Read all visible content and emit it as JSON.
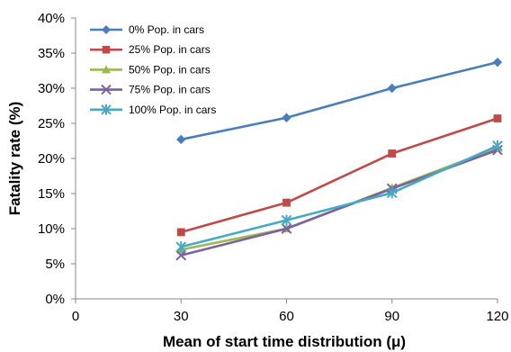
{
  "chart_data": {
    "type": "line",
    "title": "",
    "xlabel": "Mean of start time distribution (μ)",
    "ylabel": "Fatality rate (%)",
    "xlim": [
      0,
      120
    ],
    "ylim": [
      0,
      40
    ],
    "x_ticks": [
      "0",
      "30",
      "60",
      "90",
      "120"
    ],
    "y_ticks": [
      "0%",
      "5%",
      "10%",
      "15%",
      "20%",
      "25%",
      "30%",
      "35%",
      "40%"
    ],
    "grid": false,
    "legend_position": "top-left",
    "x": [
      30,
      60,
      90,
      120
    ],
    "series": [
      {
        "name": "0% Pop. in cars",
        "color": "#4a7ebb",
        "marker": "diamond",
        "values": [
          22.7,
          25.8,
          30.0,
          33.7
        ]
      },
      {
        "name": "25% Pop. in cars",
        "color": "#be4b48",
        "marker": "square",
        "values": [
          9.5,
          13.7,
          20.7,
          25.7
        ]
      },
      {
        "name": "50% Pop. in cars",
        "color": "#98b954",
        "marker": "triangle",
        "values": [
          7.0,
          10.0,
          15.8,
          21.5
        ]
      },
      {
        "name": "75% Pop. in cars",
        "color": "#7d60a0",
        "marker": "x",
        "values": [
          6.2,
          10.0,
          15.7,
          21.2
        ]
      },
      {
        "name": "100% Pop. in cars",
        "color": "#46aac5",
        "marker": "star",
        "values": [
          7.4,
          11.2,
          15.1,
          21.8
        ]
      }
    ]
  }
}
